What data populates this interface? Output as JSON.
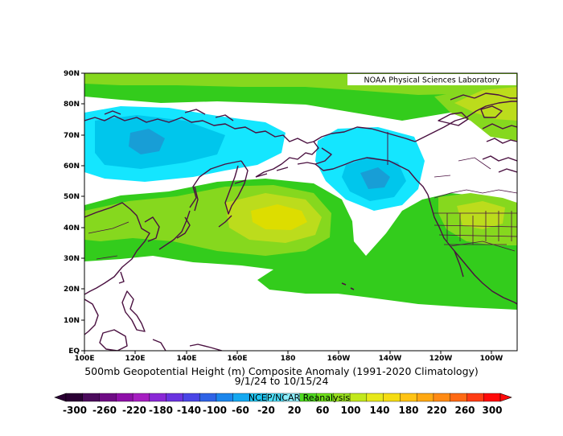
{
  "credit": "NOAA Physical Sciences Laboratory",
  "title_line1": "500mb Geopotential Height (m) Composite Anomaly (1991-2020 Climatology)",
  "title_line2": "9/1/24  to 10/15/24",
  "source": "NCEP/NCAR Reanalysis",
  "lat_labels": [
    "90N",
    "80N",
    "70N",
    "60N",
    "50N",
    "40N",
    "30N",
    "20N",
    "10N",
    "EQ"
  ],
  "lon_labels": [
    "100E",
    "120E",
    "140E",
    "160E",
    "180",
    "160W",
    "140W",
    "120W",
    "100W"
  ],
  "colorbar_labels": [
    "-300",
    "-260",
    "-220",
    "-180",
    "-140",
    "-100",
    "-60",
    "-20",
    "20",
    "60",
    "100",
    "140",
    "180",
    "220",
    "260",
    "300"
  ],
  "colorbar_colors": [
    "#2a0033",
    "#4b0b5c",
    "#6e0b84",
    "#8e0fa8",
    "#a61ec1",
    "#8a28d6",
    "#6a33e0",
    "#4a45e6",
    "#2f63e6",
    "#1b86ec",
    "#14a8f0",
    "#1fc9f6",
    "#4fe3ff",
    "#8ff0ff",
    "#4fdb1f",
    "#6fe21a",
    "#9ae31e",
    "#c2e81c",
    "#e7e81a",
    "#f5dc12",
    "#ffc314",
    "#ffa812",
    "#ff8a14",
    "#ff6a14",
    "#ff3c14",
    "#ff0a0a"
  ],
  "colors": {
    "land_outline": "#4a1040",
    "neg_light": "#14e6ff",
    "neg_mid": "#00c6ec",
    "neg_dark": "#189ed6",
    "pos_green": "#33cc1c",
    "pos_lgreen": "#86d81e",
    "pos_ygreen": "#bcdc1c",
    "pos_yellow": "#dddd00"
  }
}
